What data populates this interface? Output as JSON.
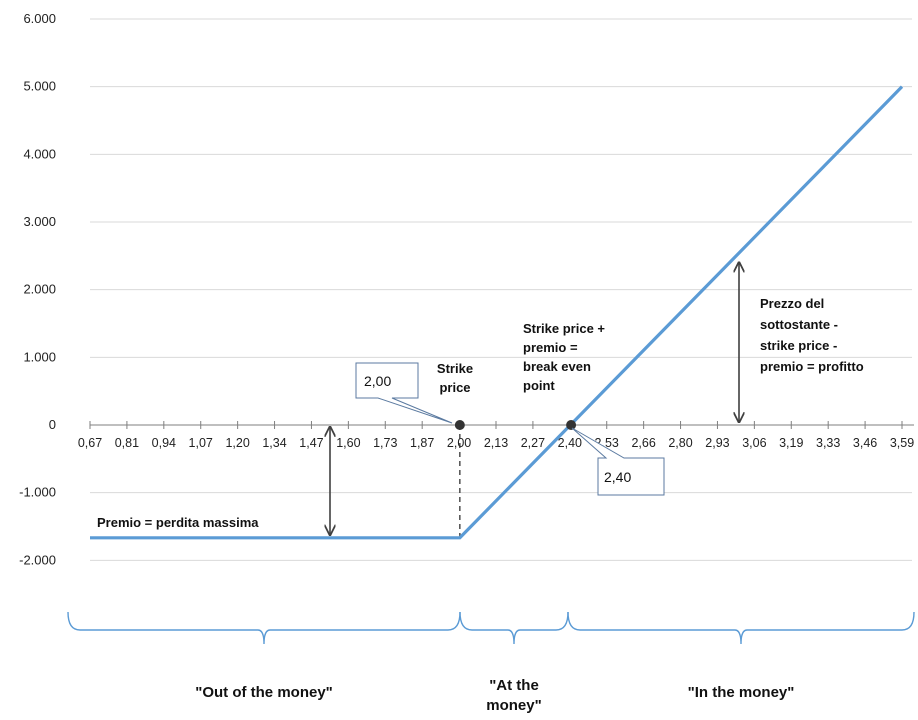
{
  "chart_data": {
    "type": "line",
    "y_ticks": [
      "6.000",
      "5.000",
      "4.000",
      "3.000",
      "2.000",
      "1.000",
      "0",
      "-1.000",
      "-2.000"
    ],
    "y_values": [
      6000,
      5000,
      4000,
      3000,
      2000,
      1000,
      0,
      -1000,
      -2000
    ],
    "x_ticks": [
      "0,67",
      "0,81",
      "0,94",
      "1,07",
      "1,20",
      "1,34",
      "1,47",
      "1,60",
      "1,73",
      "1,87",
      "2,00",
      "2,13",
      "2,27",
      "2,40",
      "2,53",
      "2,66",
      "2,80",
      "2,93",
      "3,06",
      "3,19",
      "3,33",
      "3,46",
      "3,59"
    ],
    "ylim": [
      -2000,
      6000
    ],
    "series": [
      {
        "x": [
          0.67,
          2.0,
          3.59
        ],
        "y": [
          -1667,
          -1667,
          5000
        ],
        "color": "#5b9bd5"
      }
    ],
    "markers": [
      {
        "x": 2.0,
        "y": 0
      },
      {
        "x": 2.4,
        "y": 0
      }
    ],
    "annotations": {
      "strike_price": "Strike\nprice",
      "break_even": "Strike price +\npremio =\nbreak even\npoint",
      "profit": "Prezzo del\nsottostante -\nstrike price -\npremio = profitto",
      "premium": "Premio = perdita massima",
      "callout_strike": "2,00",
      "callout_break_even": "2,40"
    },
    "regions": [
      {
        "label": "\"Out of the money\"",
        "from": 0.67,
        "to": 2.0
      },
      {
        "label": "\"At the\nmoney\"",
        "from": 2.0,
        "to": 2.4
      },
      {
        "label": "\"In the money\"",
        "from": 2.4,
        "to": 3.59
      }
    ],
    "colors": {
      "line": "#5b9bd5",
      "brace": "#5b9bd5",
      "axis": "#7f7f7f",
      "grid": "#d9d9d9",
      "marker": "#333333",
      "arrow": "#404040"
    }
  }
}
